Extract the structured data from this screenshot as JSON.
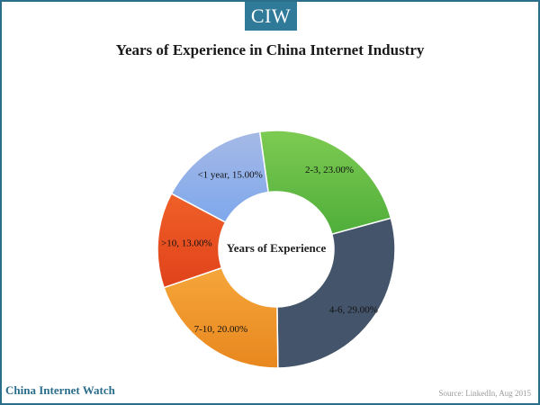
{
  "logo": {
    "text": "CIW"
  },
  "title": "Years of Experience in China Internet Industry",
  "brand": "China Internet Watch",
  "source": "Source: LinkedIn, Aug 2015",
  "chart_data": {
    "type": "pie",
    "donut": true,
    "title": "Years of Experience in China Internet Industry",
    "center_label": "Years of Experience",
    "slices": [
      {
        "name": "2-3",
        "value": 23.0,
        "label": "2-3, 23.00%",
        "color": "#4fae3a",
        "color_light": "#7dcb52"
      },
      {
        "name": "4-6",
        "value": 29.0,
        "label": "4-6, 29.00%",
        "color": "#44546a",
        "color_light": "#44546a"
      },
      {
        "name": "7-10",
        "value": 20.0,
        "label": "7-10, 20.00%",
        "color": "#e8871e",
        "color_light": "#f5a63a"
      },
      {
        "name": ">10",
        "value": 13.0,
        "label": ">10, 13.00%",
        "color": "#e0421b",
        "color_light": "#f06028"
      },
      {
        "name": "<1 year",
        "value": 15.0,
        "label": "<1 year, 15.00%",
        "color": "#7ea8ec",
        "color_light": "#a6b9e6"
      }
    ],
    "start_angle_deg": -8,
    "direction": "clockwise"
  }
}
